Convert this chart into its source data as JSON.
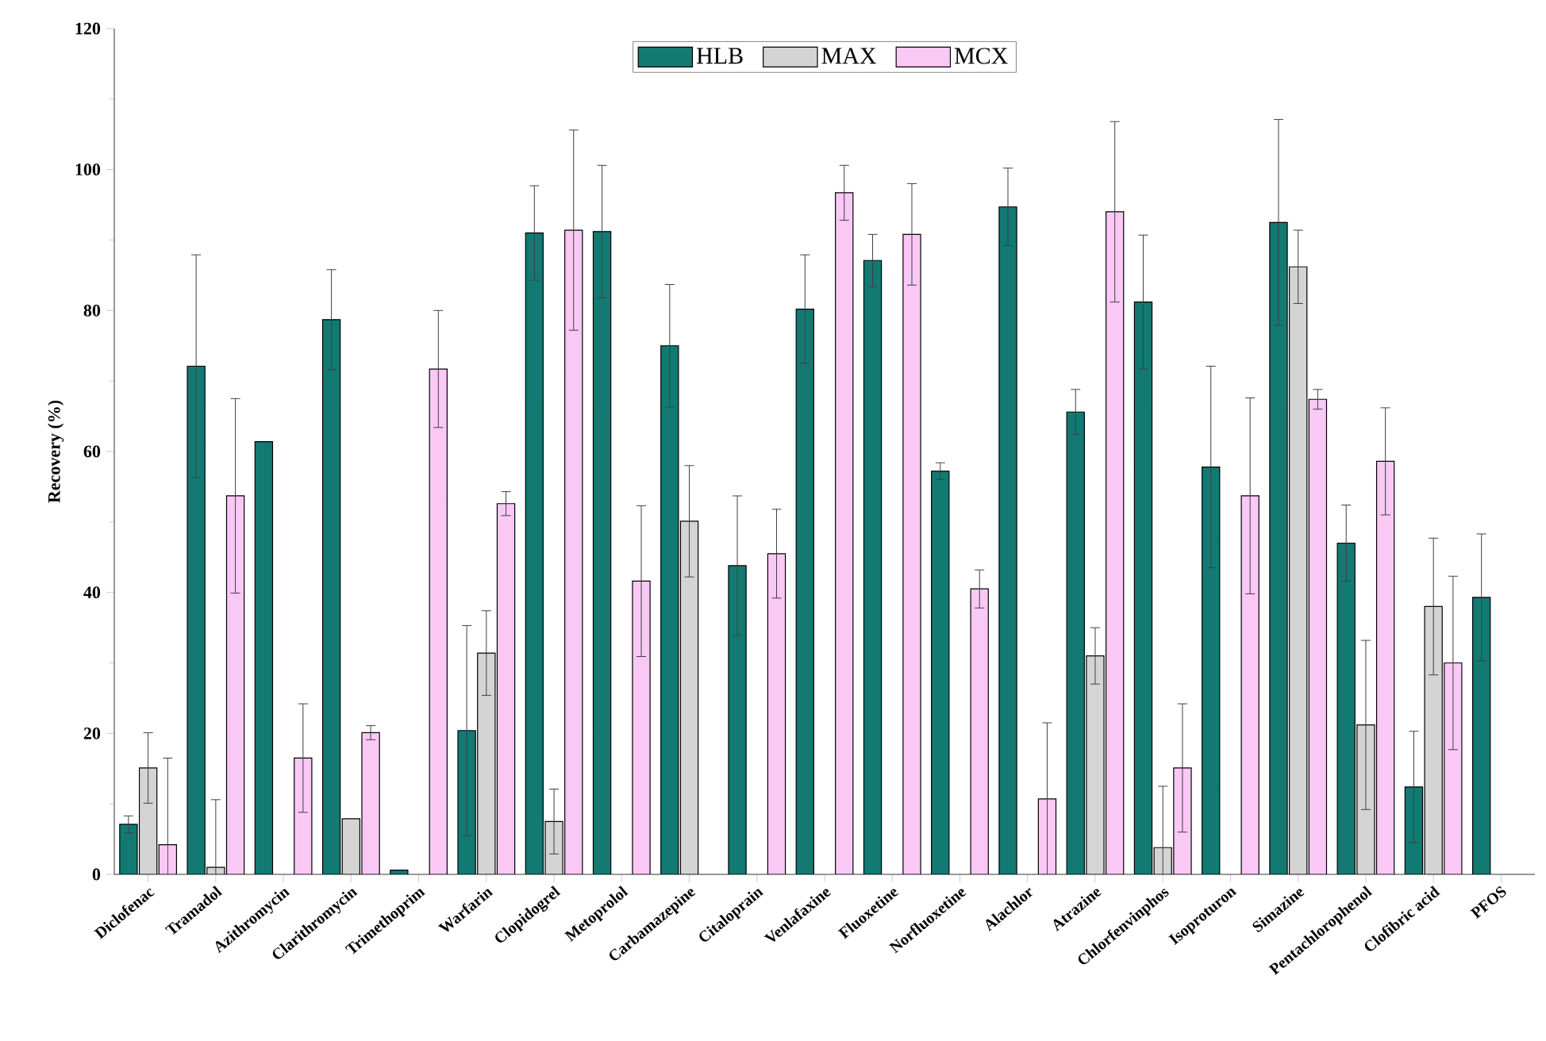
{
  "chart_data": {
    "type": "bar",
    "ylabel": "Recovery (%)",
    "categories": [
      "Diclofenac",
      "Tramadol",
      "Azithromycin",
      "Clarithromycin",
      "Trimethoprim",
      "Warfarin",
      "Clopidogrel",
      "Metoprolol",
      "Carbamazepine",
      "Citaloprain",
      "Venlafaxine",
      "Fluoxetine",
      "Norfluoxetine",
      "Alachlor",
      "Atrazine",
      "Chlorfenvinphos",
      "Isoproturon",
      "Simazine",
      "Pentachlorophenol",
      "Clofibric acid",
      "PFOS"
    ],
    "series": [
      {
        "name": "HLB",
        "color": "#127a72",
        "values": [
          7.1,
          72.1,
          61.4,
          78.7,
          0.6,
          20.4,
          91.0,
          91.2,
          75.0,
          43.8,
          80.2,
          87.1,
          57.2,
          94.7,
          65.6,
          81.2,
          57.8,
          92.5,
          47.0,
          12.4,
          39.3
        ],
        "errors": [
          1.2,
          15.8,
          null,
          7.1,
          null,
          14.9,
          6.7,
          9.4,
          8.7,
          9.9,
          7.7,
          3.7,
          1.2,
          5.5,
          3.2,
          9.5,
          14.3,
          14.6,
          5.4,
          7.9,
          9.0
        ]
      },
      {
        "name": "MAX",
        "color": "#d4d4d4",
        "values": [
          15.1,
          1.0,
          null,
          7.9,
          null,
          31.4,
          7.5,
          null,
          50.1,
          null,
          null,
          null,
          null,
          null,
          31.0,
          3.8,
          null,
          86.2,
          21.2,
          38.0,
          null
        ],
        "errors": [
          5.0,
          9.6,
          null,
          null,
          null,
          6.0,
          4.6,
          null,
          7.9,
          null,
          null,
          null,
          null,
          null,
          4.0,
          8.7,
          null,
          5.2,
          12.0,
          9.7,
          null
        ]
      },
      {
        "name": "MCX",
        "color": "#f9c8f5",
        "values": [
          4.2,
          53.7,
          16.5,
          20.1,
          71.7,
          52.6,
          91.4,
          41.6,
          null,
          45.5,
          96.7,
          90.8,
          40.5,
          10.7,
          94.0,
          15.1,
          53.7,
          67.4,
          58.6,
          30.0,
          null
        ],
        "errors": [
          12.3,
          13.8,
          7.7,
          1.0,
          8.3,
          1.7,
          14.2,
          10.7,
          null,
          6.3,
          3.9,
          7.2,
          2.7,
          10.8,
          12.8,
          9.1,
          13.9,
          1.4,
          7.6,
          12.3,
          null
        ]
      }
    ],
    "ylim": [
      0,
      120
    ],
    "yticks": [
      0,
      20,
      40,
      60,
      80,
      100,
      120
    ],
    "grid": false,
    "legend": "top"
  }
}
